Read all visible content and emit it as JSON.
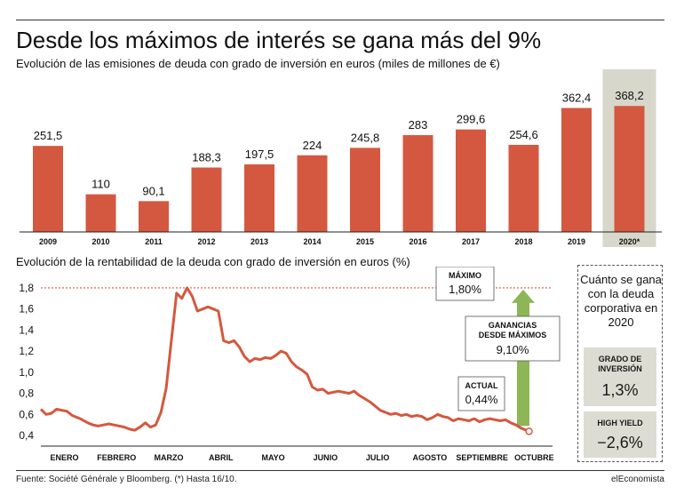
{
  "title": "Desde los máximos de interés se gana más del 9%",
  "bar_subtitle": "Evolución de las emisiones de deuda con grado de inversión en euros (miles de millones de €)",
  "line_subtitle": "Evolución de la rentabilidad de la deuda con grado de inversión en euros (%)",
  "source": "Fuente: Société Générale y Bloomberg. (*) Hasta 16/10.",
  "brand": "elEconomista",
  "colors": {
    "bar": "#d4583f",
    "highlight_bg": "#d8d7cb",
    "line": "#d4583f",
    "arrow": "#8db757",
    "ref_line": "#d4583f"
  },
  "side_panel": {
    "title": "Cuánto se gana con la deuda corporativa en 2020",
    "items": [
      {
        "label": "GRADO DE INVERSIÓN",
        "value": "1,3%"
      },
      {
        "label": "HIGH YIELD",
        "value": "−2,6%"
      }
    ]
  },
  "chart_data": [
    {
      "type": "bar",
      "categories": [
        "2009",
        "2010",
        "2011",
        "2012",
        "2013",
        "2014",
        "2015",
        "2016",
        "2017",
        "2018",
        "2019",
        "2020*"
      ],
      "values": [
        251.5,
        110,
        90.1,
        188.3,
        197.5,
        224,
        245.8,
        283,
        299.6,
        254.6,
        362.4,
        368.2
      ],
      "value_labels": [
        "251,5",
        "110",
        "90,1",
        "188,3",
        "197,5",
        "224",
        "245,8",
        "283",
        "299,6",
        "254,6",
        "362,4",
        "368,2"
      ],
      "highlight": "2020*",
      "ylim": [
        0,
        410
      ]
    },
    {
      "type": "line",
      "months": [
        "ENERO",
        "FEBRERO",
        "MARZO",
        "ABRIL",
        "MAYO",
        "JUNIO",
        "JULIO",
        "AGOSTO",
        "SEPTIEMBRE",
        "OCTUBRE"
      ],
      "yticks": [
        "0,4",
        "0,6",
        "0,8",
        "1,0",
        "1,2",
        "1,4",
        "1,6",
        "1,8"
      ],
      "ylim": [
        0.35,
        1.85
      ],
      "xlim": [
        0,
        9.8
      ],
      "reference_line": 1.8,
      "annotations": {
        "max": {
          "label": "MÁXIMO",
          "value": "1,80%"
        },
        "gain": {
          "label": "GANANCIAS DESDE MÁXIMOS",
          "value": "9,10%"
        },
        "current": {
          "label": "ACTUAL",
          "value": "0,44%"
        }
      },
      "series": [
        {
          "points": [
            [
              0.0,
              0.65
            ],
            [
              0.1,
              0.6
            ],
            [
              0.2,
              0.61
            ],
            [
              0.3,
              0.65
            ],
            [
              0.4,
              0.64
            ],
            [
              0.5,
              0.63
            ],
            [
              0.6,
              0.59
            ],
            [
              0.75,
              0.56
            ],
            [
              0.9,
              0.52
            ],
            [
              1.0,
              0.5
            ],
            [
              1.1,
              0.49
            ],
            [
              1.2,
              0.5
            ],
            [
              1.3,
              0.51
            ],
            [
              1.4,
              0.5
            ],
            [
              1.5,
              0.49
            ],
            [
              1.6,
              0.48
            ],
            [
              1.7,
              0.46
            ],
            [
              1.8,
              0.45
            ],
            [
              1.9,
              0.48
            ],
            [
              2.0,
              0.52
            ],
            [
              2.1,
              0.48
            ],
            [
              2.2,
              0.5
            ],
            [
              2.3,
              0.62
            ],
            [
              2.4,
              0.85
            ],
            [
              2.5,
              1.3
            ],
            [
              2.6,
              1.75
            ],
            [
              2.7,
              1.7
            ],
            [
              2.8,
              1.8
            ],
            [
              2.9,
              1.72
            ],
            [
              3.0,
              1.58
            ],
            [
              3.1,
              1.6
            ],
            [
              3.2,
              1.62
            ],
            [
              3.3,
              1.6
            ],
            [
              3.4,
              1.58
            ],
            [
              3.5,
              1.3
            ],
            [
              3.6,
              1.28
            ],
            [
              3.7,
              1.3
            ],
            [
              3.8,
              1.24
            ],
            [
              3.9,
              1.15
            ],
            [
              4.0,
              1.1
            ],
            [
              4.1,
              1.13
            ],
            [
              4.2,
              1.12
            ],
            [
              4.3,
              1.14
            ],
            [
              4.4,
              1.13
            ],
            [
              4.5,
              1.16
            ],
            [
              4.6,
              1.2
            ],
            [
              4.7,
              1.18
            ],
            [
              4.8,
              1.1
            ],
            [
              4.9,
              1.05
            ],
            [
              5.0,
              1.02
            ],
            [
              5.1,
              0.98
            ],
            [
              5.2,
              0.86
            ],
            [
              5.3,
              0.83
            ],
            [
              5.4,
              0.84
            ],
            [
              5.5,
              0.8
            ],
            [
              5.6,
              0.81
            ],
            [
              5.7,
              0.82
            ],
            [
              5.8,
              0.81
            ],
            [
              5.9,
              0.8
            ],
            [
              6.0,
              0.82
            ],
            [
              6.1,
              0.78
            ],
            [
              6.2,
              0.75
            ],
            [
              6.3,
              0.72
            ],
            [
              6.4,
              0.68
            ],
            [
              6.5,
              0.64
            ],
            [
              6.6,
              0.62
            ],
            [
              6.7,
              0.6
            ],
            [
              6.8,
              0.61
            ],
            [
              6.9,
              0.59
            ],
            [
              7.0,
              0.6
            ],
            [
              7.1,
              0.58
            ],
            [
              7.2,
              0.59
            ],
            [
              7.3,
              0.58
            ],
            [
              7.4,
              0.55
            ],
            [
              7.5,
              0.57
            ],
            [
              7.6,
              0.6
            ],
            [
              7.7,
              0.58
            ],
            [
              7.8,
              0.57
            ],
            [
              7.9,
              0.54
            ],
            [
              8.0,
              0.56
            ],
            [
              8.1,
              0.55
            ],
            [
              8.2,
              0.54
            ],
            [
              8.3,
              0.56
            ],
            [
              8.4,
              0.53
            ],
            [
              8.5,
              0.55
            ],
            [
              8.6,
              0.56
            ],
            [
              8.7,
              0.55
            ],
            [
              8.8,
              0.54
            ],
            [
              8.9,
              0.55
            ],
            [
              9.0,
              0.52
            ],
            [
              9.1,
              0.5
            ],
            [
              9.2,
              0.47
            ],
            [
              9.3,
              0.45
            ],
            [
              9.35,
              0.44
            ]
          ]
        }
      ]
    }
  ]
}
